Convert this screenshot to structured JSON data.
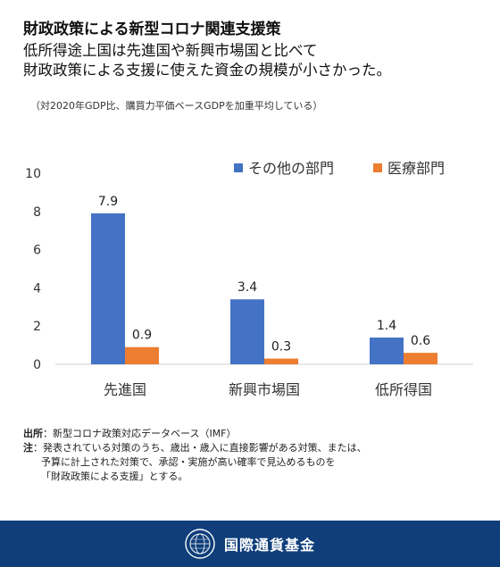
{
  "header": {
    "title": "財政政策による新型コロナ関連支援策",
    "subtitle_line1": "低所得途上国は先進国や新興市場国と比べて",
    "subtitle_line2": "財政政策による支援に使えた資金の規模が小さかった。",
    "note": "（対2020年GDP比、購買力平価ベースGDPを加重平均している）"
  },
  "chart_data": {
    "type": "bar",
    "categories": [
      "先進国",
      "新興市場国",
      "低所得国"
    ],
    "series": [
      {
        "name": "その他の部門",
        "values": [
          7.9,
          3.4,
          1.4
        ],
        "color": "#4472c4"
      },
      {
        "name": "医療部門",
        "values": [
          0.9,
          0.3,
          0.6
        ],
        "color": "#ed7d31"
      }
    ],
    "data_labels": [
      [
        "7.9",
        "3.4",
        "1.4"
      ],
      [
        "0.9",
        "0.3",
        "0.6"
      ]
    ],
    "ylim": [
      0,
      10
    ],
    "yticks": [
      "0",
      "2",
      "4",
      "6",
      "8",
      "10"
    ],
    "grid": false,
    "legend": "top-right"
  },
  "footnotes": {
    "source_head": "出所",
    "source_text": "：新型コロナ政策対応データベース（IMF）",
    "note_head": "注",
    "note_line1": "：発表されている対策のうち、歳出・歳入に直接影響がある対策、または、",
    "note_line2": "予算に計上された対策で、承認・実施が高い確率で見込めるものを",
    "note_line3": "「財政政策による支援」とする。"
  },
  "footer": {
    "org_name": "国際通貨基金",
    "logo_icon": "imf-seal-icon"
  }
}
